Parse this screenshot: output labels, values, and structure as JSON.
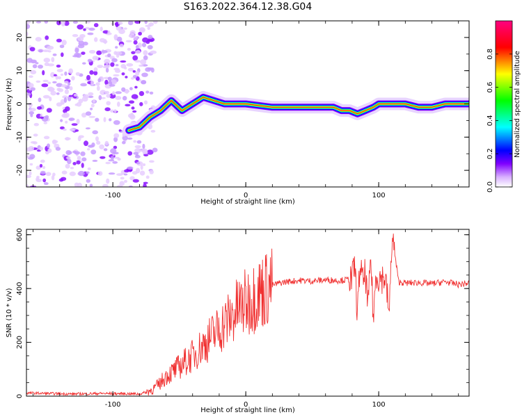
{
  "title": "S163.2022.364.12.38.G04",
  "chart_data": [
    {
      "type": "heatmap",
      "xlabel": "Height of straight line (km)",
      "ylabel": "Frequency (Hz)",
      "xlim": [
        -165,
        168
      ],
      "ylim": [
        -25,
        25
      ],
      "xticks": [
        -100,
        0,
        100
      ],
      "xtick_labels": [
        "-100",
        "0",
        "100"
      ],
      "yticks": [
        -20,
        -10,
        0,
        10,
        20
      ],
      "ytick_labels": [
        "-20",
        "-10",
        "0",
        "10",
        "20"
      ],
      "ridge": {
        "name": "dominant frequency track",
        "x": [
          -88,
          -80,
          -72,
          -64,
          -56,
          -48,
          -40,
          -32,
          -24,
          -16,
          -8,
          0,
          20,
          40,
          60,
          66,
          72,
          78,
          84,
          90,
          96,
          100,
          110,
          120,
          130,
          140,
          150,
          160,
          168
        ],
        "y": [
          -8,
          -7,
          -4,
          -2,
          1,
          -2,
          0,
          2,
          1,
          0,
          0,
          0,
          -1,
          -1,
          -1,
          -1,
          -2,
          -2,
          -3,
          -2,
          -1,
          0,
          0,
          0,
          -1,
          -1,
          0,
          0,
          0
        ]
      },
      "noise_region_x": [
        -165,
        -78
      ],
      "colorbar": {
        "label": "Normalized spectral amplitude",
        "range": [
          0,
          1
        ],
        "ticks": [
          0.0,
          0.2,
          0.4,
          0.6,
          0.8
        ],
        "tick_labels": [
          "0.0",
          "0.2",
          "0.4",
          "0.6",
          "0.8"
        ],
        "colors": [
          "#ffffff",
          "#cfa0ff",
          "#8000ff",
          "#0000ff",
          "#00ffff",
          "#00ff00",
          "#ffff00",
          "#ff0000",
          "#ff0080"
        ]
      }
    },
    {
      "type": "line",
      "xlabel": "Height of straight line (km)",
      "ylabel": "SNR (10 * v/v)",
      "xlim": [
        -165,
        168
      ],
      "ylim": [
        0,
        620
      ],
      "xticks": [
        -100,
        0,
        100
      ],
      "xtick_labels": [
        "-100",
        "0",
        "100"
      ],
      "yticks": [
        0,
        200,
        400,
        600
      ],
      "ytick_labels": [
        "0",
        "200",
        "400",
        "600"
      ],
      "series": [
        {
          "name": "SNR",
          "color": "#f03030",
          "x": [
            -165,
            -150,
            -130,
            -110,
            -90,
            -80,
            -75,
            -70,
            -65,
            -60,
            -55,
            -50,
            -45,
            -40,
            -35,
            -30,
            -25,
            -20,
            -15,
            -10,
            -5,
            0,
            5,
            10,
            15,
            20,
            25,
            30,
            40,
            50,
            60,
            70,
            75,
            80,
            82,
            84,
            86,
            88,
            90,
            92,
            94,
            96,
            98,
            100,
            105,
            108,
            110,
            115,
            120,
            130,
            140,
            150,
            160,
            168
          ],
          "values": [
            12,
            10,
            8,
            10,
            9,
            8,
            15,
            25,
            45,
            75,
            90,
            110,
            130,
            150,
            175,
            200,
            225,
            250,
            275,
            300,
            330,
            345,
            365,
            385,
            400,
            412,
            420,
            425,
            430,
            428,
            432,
            430,
            432,
            435,
            490,
            300,
            500,
            420,
            460,
            320,
            520,
            280,
            460,
            440,
            440,
            300,
            600,
            425,
            420,
            422,
            418,
            425,
            415,
            420
          ]
        }
      ]
    }
  ]
}
